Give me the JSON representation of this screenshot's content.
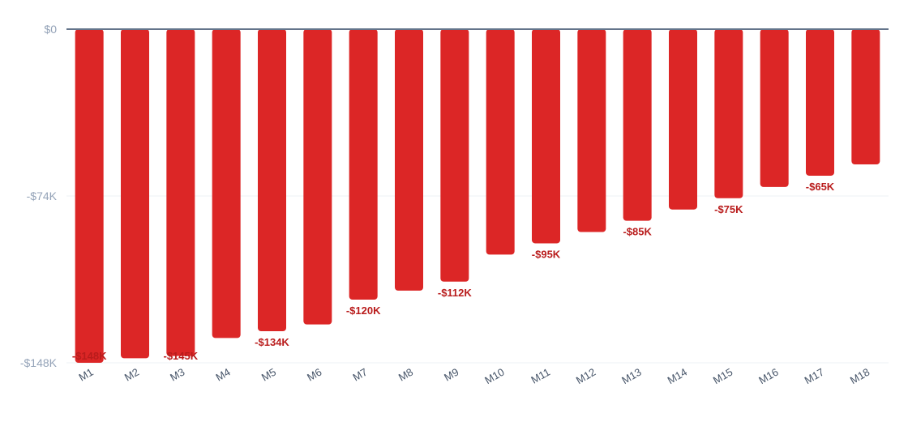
{
  "chart_data": {
    "type": "bar",
    "categories": [
      "M1",
      "M2",
      "M3",
      "M4",
      "M5",
      "M6",
      "M7",
      "M8",
      "M9",
      "M10",
      "M11",
      "M12",
      "M13",
      "M14",
      "M15",
      "M16",
      "M17",
      "M18"
    ],
    "series": [
      {
        "values": [
          -148,
          -146,
          -145,
          -137,
          -134,
          -131,
          -120,
          -116,
          -112,
          -100,
          -95,
          -90,
          -85,
          -80,
          -75,
          -70,
          -65,
          -60
        ]
      }
    ],
    "data_labels": [
      {
        "index": 0,
        "text": "-$148K"
      },
      {
        "index": 2,
        "text": "-$145K"
      },
      {
        "index": 4,
        "text": "-$134K"
      },
      {
        "index": 6,
        "text": "-$120K"
      },
      {
        "index": 8,
        "text": "-$112K"
      },
      {
        "index": 10,
        "text": "-$95K"
      },
      {
        "index": 12,
        "text": "-$85K"
      },
      {
        "index": 14,
        "text": "-$75K"
      },
      {
        "index": 16,
        "text": "-$65K"
      }
    ],
    "yticks": [
      {
        "value": 0,
        "label": "$0"
      },
      {
        "value": -74,
        "label": "-$74K"
      },
      {
        "value": -148,
        "label": "-$148K"
      }
    ],
    "ylim": [
      -148,
      0
    ],
    "title": "",
    "xlabel": "",
    "ylabel": "",
    "grid": true,
    "legend": "none",
    "colors": {
      "bar": "#dc2626",
      "data_label": "#b91c1c",
      "zero_line": "#64748b",
      "grid": "#eef2f6",
      "ytick": "#94a3b8",
      "xtick": "#475569"
    }
  }
}
